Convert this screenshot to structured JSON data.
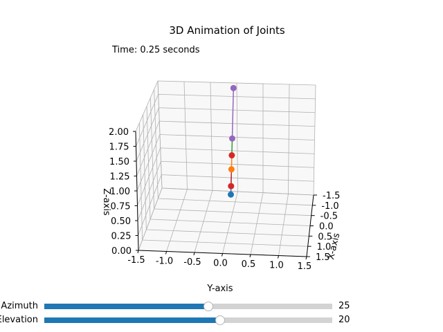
{
  "title": "3D Animation of Joints",
  "time_text": "Time: 0.25 seconds",
  "sliders": {
    "azimuth": {
      "label": "Azimuth",
      "value": "25",
      "fraction": 0.57
    },
    "elevation": {
      "label": "Elevation",
      "value": "20",
      "fraction": 0.61
    }
  },
  "chart_data": {
    "type": "scatter",
    "projection": "3d",
    "view": {
      "azimuth": 25,
      "elevation": 20
    },
    "xlabel": "X-axis",
    "ylabel": "Y-axis",
    "zlabel": "Z-axis",
    "xlim": [
      -1.5,
      1.5
    ],
    "ylim": [
      -1.5,
      1.5
    ],
    "zlim": [
      0.0,
      2.0
    ],
    "x_ticks": [
      "-1.5",
      "-1.0",
      "-0.5",
      "0.0",
      "0.5",
      "1.0",
      "1.5"
    ],
    "y_ticks": [
      "-1.5",
      "-1.0",
      "-0.5",
      "0.0",
      "0.5",
      "1.0",
      "1.5"
    ],
    "z_ticks": [
      "0.00",
      "0.25",
      "0.50",
      "0.75",
      "1.00",
      "1.25",
      "1.50",
      "1.75",
      "2.00"
    ],
    "grid": true,
    "joints": [
      {
        "x": 0.0,
        "y": 0.0,
        "z": 0.5,
        "color": "#1f77b4"
      },
      {
        "x": 0.0,
        "y": 0.0,
        "z": 0.95,
        "color": "#ff7f0e"
      },
      {
        "x": 0.0,
        "y": 0.0,
        "z": 1.2,
        "color": "#d62728"
      },
      {
        "x": 0.0,
        "y": 0.0,
        "z": 0.65,
        "color": "#d62728"
      },
      {
        "x": 0.0,
        "y": 0.0,
        "z": 1.5,
        "color": "#9467bd"
      },
      {
        "x": 0.0,
        "y": 0.0,
        "z": 2.4,
        "color": "#9467bd"
      }
    ],
    "segments": [
      {
        "from": 0,
        "to": 1,
        "color": "#1f77b4"
      },
      {
        "from": 1,
        "to": 2,
        "color": "#ff7f0e"
      },
      {
        "from": 2,
        "to": 4,
        "color": "#2ca02c"
      },
      {
        "from": 1,
        "to": 3,
        "color": "#d62728"
      },
      {
        "from": 4,
        "to": 5,
        "color": "#9467bd"
      }
    ]
  }
}
